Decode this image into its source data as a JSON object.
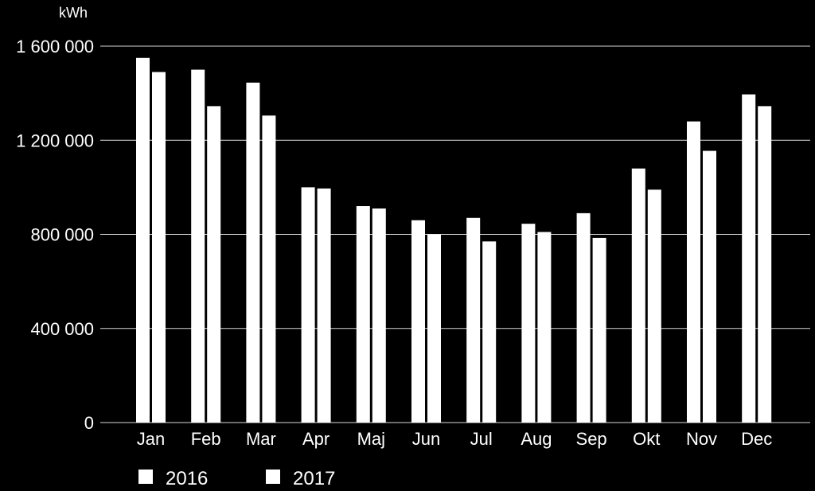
{
  "chart_data": {
    "type": "bar",
    "ylabel": "kWh",
    "ylim": [
      0,
      1600000
    ],
    "yticks": [
      0,
      400000,
      800000,
      1200000,
      1600000
    ],
    "ytick_labels": [
      "0",
      "400 000",
      "800 000",
      "1 200 000",
      "1 600 000"
    ],
    "grid": true,
    "legend_position": "bottom-left",
    "categories": [
      "Jan",
      "Feb",
      "Mar",
      "Apr",
      "Maj",
      "Jun",
      "Jul",
      "Aug",
      "Sep",
      "Okt",
      "Nov",
      "Dec"
    ],
    "series": [
      {
        "name": "2016",
        "color": "#ffffff",
        "values": [
          1550000,
          1500000,
          1445000,
          1000000,
          920000,
          860000,
          870000,
          845000,
          890000,
          1080000,
          1280000,
          1395000
        ]
      },
      {
        "name": "2017",
        "color": "#ffffff",
        "values": [
          1490000,
          1345000,
          1305000,
          995000,
          910000,
          800000,
          770000,
          810000,
          785000,
          990000,
          1155000,
          1345000
        ]
      }
    ]
  },
  "colors": {
    "background": "#000000",
    "bars": "#ffffff",
    "gridlines": "#d9d9d9",
    "text": "#ffffff"
  }
}
